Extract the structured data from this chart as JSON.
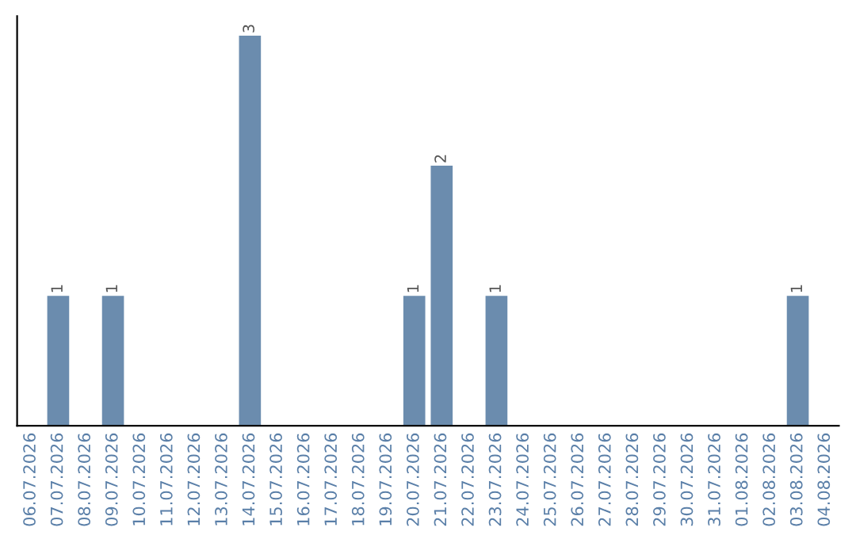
{
  "chart_data": {
    "type": "bar",
    "categories": [
      "06.07.2026",
      "07.07.2026",
      "08.07.2026",
      "09.07.2026",
      "10.07.2026",
      "11.07.2026",
      "12.07.2026",
      "13.07.2026",
      "14.07.2026",
      "15.07.2026",
      "16.07.2026",
      "17.07.2026",
      "18.07.2026",
      "19.07.2026",
      "20.07.2026",
      "21.07.2026",
      "22.07.2026",
      "23.07.2026",
      "24.07.2026",
      "25.07.2026",
      "26.07.2026",
      "27.07.2026",
      "28.07.2026",
      "29.07.2026",
      "30.07.2026",
      "31.07.2026",
      "01.08.2026",
      "02.08.2026",
      "03.08.2026",
      "04.08.2026"
    ],
    "values": [
      0,
      1,
      0,
      1,
      0,
      0,
      0,
      0,
      3,
      0,
      0,
      0,
      0,
      0,
      1,
      2,
      0,
      1,
      0,
      0,
      0,
      0,
      0,
      0,
      0,
      0,
      0,
      0,
      1,
      0
    ],
    "value_labels": [
      null,
      "1",
      null,
      "1",
      null,
      null,
      null,
      null,
      "3",
      null,
      null,
      null,
      null,
      null,
      "1",
      "2",
      null,
      "1",
      null,
      null,
      null,
      null,
      null,
      null,
      null,
      null,
      null,
      null,
      "1",
      null
    ],
    "color": "#6b8cae",
    "tick_labels": "x",
    "grid": false,
    "legend": false
  }
}
